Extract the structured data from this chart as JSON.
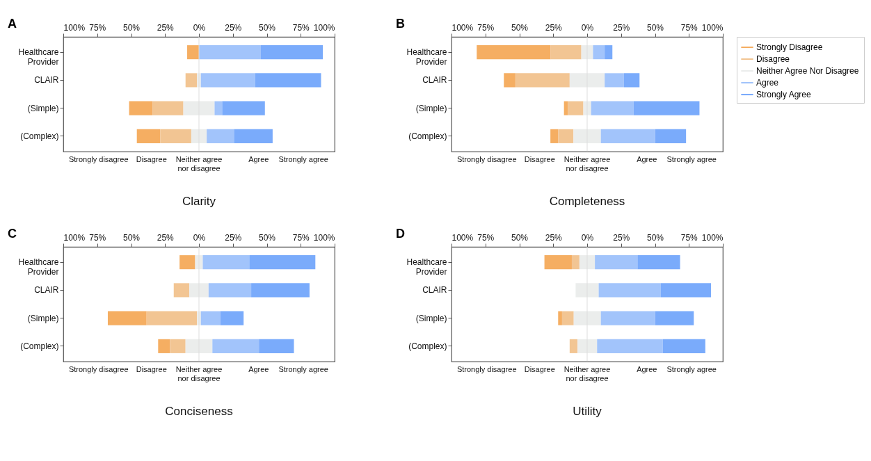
{
  "chart_data": [
    {
      "type": "bar",
      "orientation": "horizontal",
      "title": "Clarity",
      "annotations": [
        "A",
        "Strongly disagree",
        "Disagree",
        "Neither agree nor disagree",
        "Agree",
        "Strongly agree"
      ],
      "categories": [
        "Healthcare Provider",
        "CLAIR",
        "(Simple)",
        "(Complex)"
      ],
      "series": [
        {
          "color": "#f5ae62",
          "values": [
            8.7,
            null,
            17.2,
            17.2
          ],
          "base": [
            -8.7,
            null,
            -51.5,
            -45.8
          ]
        },
        {
          "color": "#f2c593",
          "values": [
            null,
            8.5,
            22.8,
            22.9
          ],
          "base": [
            null,
            -9.9,
            -34.3,
            -28.6
          ]
        },
        {
          "color": "#ebedec",
          "values": [
            null,
            2.8,
            23,
            11.4
          ],
          "base": [
            null,
            -1.4,
            -11.5,
            -5.7
          ]
        },
        {
          "color": "#a2c4fb",
          "values": [
            45.6,
            39.9,
            5.6,
            20.1
          ],
          "base": [
            0,
            1.4,
            11.5,
            5.7
          ]
        },
        {
          "color": "#7aabfb",
          "values": [
            45.7,
            48.7,
            31.5,
            28.5
          ],
          "base": [
            45.6,
            41.3,
            17.1,
            25.8
          ]
        }
      ],
      "xlim": [
        -100,
        100
      ],
      "xticks": [
        {
          "value": -100,
          "label": "100%"
        },
        {
          "value": -75,
          "label": "75%"
        },
        {
          "value": -50,
          "label": "50%"
        },
        {
          "value": -25,
          "label": "25%"
        },
        {
          "value": 0,
          "label": "0%"
        },
        {
          "value": 25,
          "label": "25%"
        },
        {
          "value": 50,
          "label": "50%"
        },
        {
          "value": 75,
          "label": "75%"
        },
        {
          "value": 100,
          "label": "100%"
        }
      ],
      "ref_lines": [
        {
          "axis": "x",
          "value": 0,
          "color": "#dddddd"
        }
      ],
      "grid": false,
      "legend": false
    },
    {
      "type": "bar",
      "orientation": "horizontal",
      "title": "Completeness",
      "annotations": [
        "B",
        "Strongly disagree",
        "Disagree",
        "Neither agree nor disagree",
        "Agree",
        "Strongly agree"
      ],
      "categories": [
        "Healthcare Provider",
        "CLAIR",
        "(Simple)",
        "(Complex)"
      ],
      "series": [
        {
          "name": "Strongly Disagree",
          "color": "#f5ae62",
          "values": [
            54.3,
            8.5,
            2.8,
            5.7
          ],
          "base": [
            -81.4,
            -61.4,
            -17.1,
            -27.1
          ]
        },
        {
          "name": "Disagree",
          "color": "#f2c593",
          "values": [
            22.8,
            40,
            11.5,
            11.3
          ],
          "base": [
            -27.1,
            -52.9,
            -14.3,
            -21.4
          ]
        },
        {
          "name": "Neither Agree Nor Disagree",
          "color": "#ebedec",
          "values": [
            8.6,
            25.8,
            5.7,
            20.2
          ],
          "base": [
            -4.3,
            -12.9,
            -2.8,
            -10.1
          ]
        },
        {
          "name": "Agree",
          "color": "#a2c4fb",
          "values": [
            8.6,
            14.2,
            31.4,
            40
          ],
          "base": [
            4.3,
            12.9,
            2.9,
            10.1
          ]
        },
        {
          "name": "Strongly Agree",
          "color": "#7aabfb",
          "values": [
            5.7,
            11.5,
            48.5,
            22.8
          ],
          "base": [
            12.9,
            27.1,
            34.3,
            50.1
          ]
        }
      ],
      "xlim": [
        -100,
        100
      ],
      "xticks": [
        {
          "value": -100,
          "label": "100%"
        },
        {
          "value": -75,
          "label": "75%"
        },
        {
          "value": -50,
          "label": "50%"
        },
        {
          "value": -25,
          "label": "25%"
        },
        {
          "value": 0,
          "label": "0%"
        },
        {
          "value": 25,
          "label": "25%"
        },
        {
          "value": 50,
          "label": "50%"
        },
        {
          "value": 75,
          "label": "75%"
        },
        {
          "value": 100,
          "label": "100%"
        }
      ],
      "ref_lines": [
        {
          "axis": "x",
          "value": 0,
          "color": "#dddddd"
        }
      ],
      "grid": false,
      "legend": "right"
    },
    {
      "type": "bar",
      "orientation": "horizontal",
      "title": "Conciseness",
      "annotations": [
        "C",
        "Strongly disagree",
        "Disagree",
        "Neither agree nor disagree",
        "Agree",
        "Strongly agree"
      ],
      "categories": [
        "Healthcare Provider",
        "CLAIR",
        "(Simple)",
        "(Complex)"
      ],
      "series": [
        {
          "color": "#f5ae62",
          "values": [
            11.5,
            null,
            28.6,
            8.7
          ],
          "base": [
            -14.3,
            null,
            -67.2,
            -30.1
          ]
        },
        {
          "color": "#f2c593",
          "values": [
            null,
            11.5,
            37.2,
            11.5
          ],
          "base": [
            null,
            -18.6,
            -38.6,
            -21.4
          ]
        },
        {
          "color": "#ebedec",
          "values": [
            5.6,
            14.2,
            2.8,
            19.8
          ],
          "base": [
            -2.8,
            -7.1,
            -1.4,
            -9.9
          ]
        },
        {
          "color": "#a2c4fb",
          "values": [
            34.3,
            31.4,
            14.3,
            34.3
          ],
          "base": [
            2.8,
            7.1,
            1.4,
            9.9
          ]
        },
        {
          "color": "#7aabfb",
          "values": [
            48.7,
            43,
            17.2,
            25.8
          ],
          "base": [
            37.1,
            38.5,
            15.7,
            44.2
          ]
        }
      ],
      "xlim": [
        -100,
        100
      ],
      "xticks": [
        {
          "value": -100,
          "label": "100%"
        },
        {
          "value": -75,
          "label": "75%"
        },
        {
          "value": -50,
          "label": "50%"
        },
        {
          "value": -25,
          "label": "25%"
        },
        {
          "value": 0,
          "label": "0%"
        },
        {
          "value": 25,
          "label": "25%"
        },
        {
          "value": 50,
          "label": "50%"
        },
        {
          "value": 75,
          "label": "75%"
        },
        {
          "value": 100,
          "label": "100%"
        }
      ],
      "ref_lines": [
        {
          "axis": "x",
          "value": 0,
          "color": "#dddddd"
        }
      ],
      "grid": false,
      "legend": false
    },
    {
      "type": "bar",
      "orientation": "horizontal",
      "title": "Utility",
      "annotations": [
        "D",
        "Strongly disagree",
        "Disagree",
        "Neither agree nor disagree",
        "Agree",
        "Strongly agree"
      ],
      "categories": [
        "Healthcare Provider",
        "CLAIR",
        "(Simple)",
        "(Complex)"
      ],
      "series": [
        {
          "color": "#f5ae62",
          "values": [
            20.2,
            null,
            2.9,
            null
          ],
          "base": [
            -31.5,
            null,
            -21.4,
            null
          ]
        },
        {
          "color": "#f2c593",
          "values": [
            5.6,
            null,
            8.6,
            5.8
          ],
          "base": [
            -11.3,
            null,
            -18.5,
            -12.9
          ]
        },
        {
          "color": "#ebedec",
          "values": [
            11.4,
            17,
            20,
            14.4
          ],
          "base": [
            -5.7,
            -8.5,
            -9.9,
            -7.1
          ]
        },
        {
          "color": "#a2c4fb",
          "values": [
            31.4,
            45.8,
            40,
            48.4
          ],
          "base": [
            5.7,
            8.5,
            10.1,
            7.3
          ]
        },
        {
          "color": "#7aabfb",
          "values": [
            31.4,
            37,
            28.5,
            31.4
          ],
          "base": [
            37.1,
            54.3,
            50.1,
            55.7
          ]
        }
      ],
      "xlim": [
        -100,
        100
      ],
      "xticks": [
        {
          "value": -100,
          "label": "100%"
        },
        {
          "value": -75,
          "label": "75%"
        },
        {
          "value": -50,
          "label": "50%"
        },
        {
          "value": -25,
          "label": "25%"
        },
        {
          "value": 0,
          "label": "0%"
        },
        {
          "value": 25,
          "label": "25%"
        },
        {
          "value": 50,
          "label": "50%"
        },
        {
          "value": 75,
          "label": "75%"
        },
        {
          "value": 100,
          "label": "100%"
        }
      ],
      "ref_lines": [
        {
          "axis": "x",
          "value": 0,
          "color": "#dddddd"
        }
      ],
      "grid": false,
      "legend": false
    }
  ]
}
